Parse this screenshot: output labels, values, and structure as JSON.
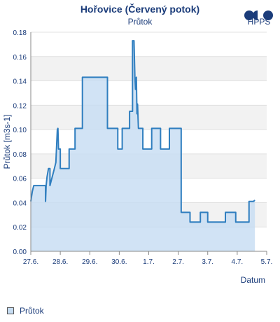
{
  "header": {
    "title": "Hořovice (Červený potok)",
    "subtitle": "Průtok"
  },
  "logo": {
    "text": "HPPS",
    "color": "#1b3c7a"
  },
  "legend": {
    "label": "Průtok"
  },
  "chart_data": {
    "type": "area",
    "title": "Hořovice (Červený potok)",
    "subtitle": "Průtok",
    "xlabel": "Datum",
    "ylabel": "Průtok [m3s-1]",
    "xlim": [
      0,
      8
    ],
    "ylim": [
      0,
      0.18
    ],
    "yticks": [
      0,
      0.02,
      0.04,
      0.06,
      0.08,
      0.1,
      0.12,
      0.14,
      0.16,
      0.18
    ],
    "ytick_labels": [
      "0.00",
      "0.02",
      "0.04",
      "0.06",
      "0.08",
      "0.10",
      "0.12",
      "0.14",
      "0.16",
      "0.18"
    ],
    "xticks": [
      0,
      1,
      2,
      3,
      4,
      5,
      6,
      7,
      8
    ],
    "xtick_labels": [
      "27.6.",
      "28.6.",
      "29.6.",
      "30.6.",
      "1.7.",
      "2.7.",
      "3.7.",
      "4.7.",
      "5.7."
    ],
    "grid": true,
    "colors": {
      "line": "#2f7ebf",
      "fill": "#c6dcf2",
      "band": "#f2f2f2",
      "grid": "#e0e0e0"
    },
    "series": [
      {
        "name": "Průtok",
        "x": [
          0.0,
          0.05,
          0.1,
          0.5,
          0.5,
          0.52,
          0.55,
          0.6,
          0.6,
          0.65,
          0.65,
          0.8,
          0.85,
          0.9,
          0.92,
          0.94,
          0.96,
          1.0,
          1.0,
          1.3,
          1.3,
          1.5,
          1.5,
          1.75,
          1.75,
          2.6,
          2.6,
          2.95,
          2.95,
          3.1,
          3.1,
          3.35,
          3.35,
          3.45,
          3.45,
          3.5,
          3.53,
          3.55,
          3.58,
          3.6,
          3.62,
          3.65,
          3.67,
          3.7,
          3.72,
          3.75,
          3.8,
          3.8,
          4.1,
          4.1,
          4.4,
          4.4,
          4.7,
          4.7,
          5.1,
          5.1,
          5.4,
          5.4,
          5.75,
          5.75,
          6.0,
          6.0,
          6.6,
          6.6,
          6.95,
          6.95,
          7.4,
          7.4,
          7.55,
          7.6,
          7.6
        ],
        "y": [
          0.041,
          0.049,
          0.054,
          0.054,
          0.041,
          0.054,
          0.061,
          0.068,
          0.068,
          0.068,
          0.054,
          0.068,
          0.073,
          0.1,
          0.101,
          0.084,
          0.084,
          0.084,
          0.068,
          0.068,
          0.084,
          0.084,
          0.101,
          0.101,
          0.143,
          0.143,
          0.101,
          0.101,
          0.084,
          0.084,
          0.101,
          0.101,
          0.115,
          0.115,
          0.173,
          0.173,
          0.143,
          0.133,
          0.143,
          0.113,
          0.121,
          0.101,
          0.101,
          0.101,
          0.101,
          0.101,
          0.101,
          0.084,
          0.084,
          0.101,
          0.101,
          0.084,
          0.084,
          0.101,
          0.101,
          0.032,
          0.032,
          0.024,
          0.024,
          0.032,
          0.032,
          0.024,
          0.024,
          0.032,
          0.032,
          0.024,
          0.024,
          0.041,
          0.041,
          0.042,
          0.042
        ]
      }
    ]
  }
}
